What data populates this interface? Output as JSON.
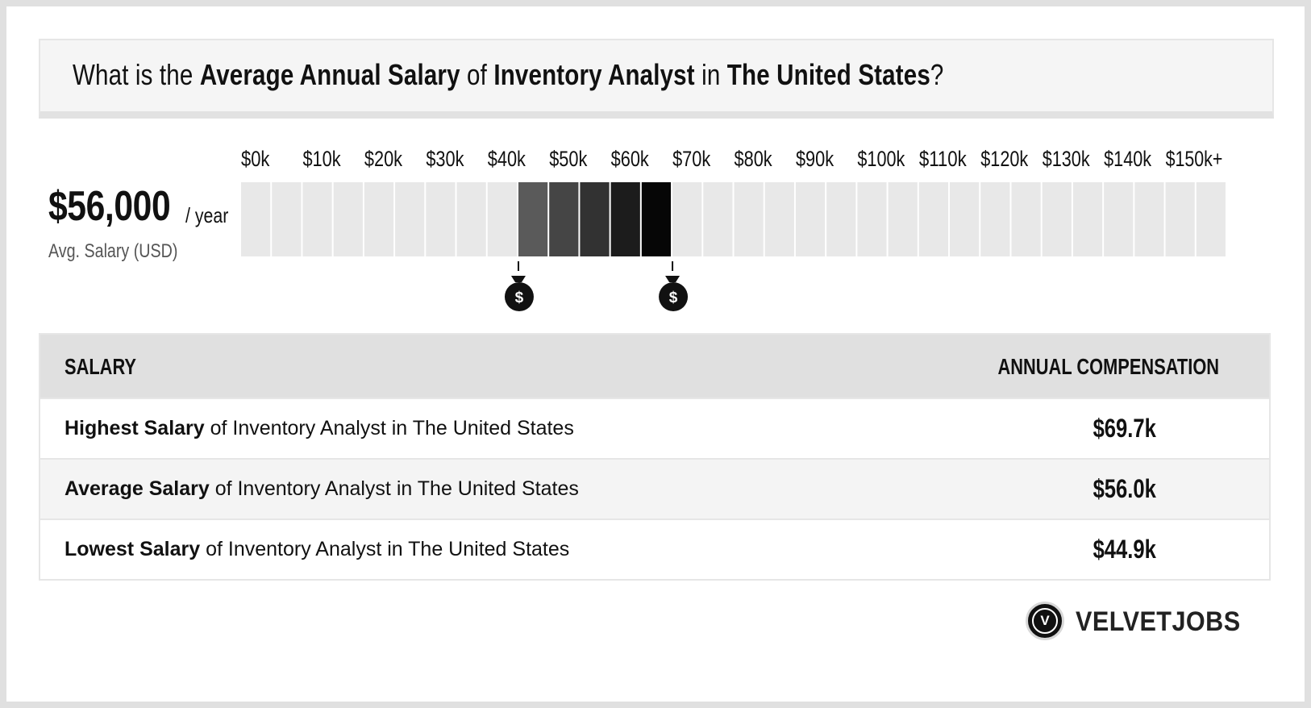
{
  "title": {
    "part1": "What is the ",
    "bold1": "Average Annual Salary",
    "part2": " of ",
    "bold2": "Inventory Analyst",
    "part3": " in ",
    "bold3": "The United States",
    "part4": "?"
  },
  "average": {
    "value": "$56,000",
    "unit": "/ year",
    "label": "Avg. Salary (USD)"
  },
  "chart_data": {
    "type": "bar",
    "tick_labels": [
      "$0k",
      "$10k",
      "$20k",
      "$30k",
      "$40k",
      "$50k",
      "$60k",
      "$70k",
      "$80k",
      "$90k",
      "$100k",
      "$110k",
      "$120k",
      "$130k",
      "$140k",
      "$150k+"
    ],
    "range_start": 0,
    "range_end": 160,
    "cell_size": 5,
    "highlight_start": 45,
    "highlight_end": 70,
    "highlight_colors": [
      "#5a5a5a",
      "#454545",
      "#323232",
      "#1c1c1c",
      "#060606"
    ],
    "base_color": "#e8e8e8",
    "markers": [
      {
        "value": 45,
        "icon": "money-bag-icon",
        "glyph": "$"
      },
      {
        "value": 70,
        "icon": "money-bag-icon",
        "glyph": "$"
      }
    ]
  },
  "table": {
    "header_left": "SALARY",
    "header_right": "ANNUAL COMPENSATION",
    "rows": [
      {
        "bold": "Highest Salary",
        "rest": " of Inventory Analyst in The United States",
        "value": "$69.7k"
      },
      {
        "bold": "Average Salary",
        "rest": " of Inventory Analyst in The United States",
        "value": "$56.0k"
      },
      {
        "bold": "Lowest Salary",
        "rest": " of Inventory Analyst in The United States",
        "value": "$44.9k"
      }
    ]
  },
  "brand": {
    "logo_letter": "V",
    "name": "VELVETJOBS"
  }
}
